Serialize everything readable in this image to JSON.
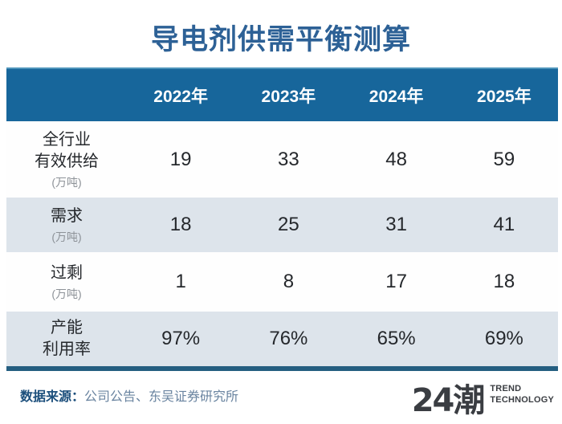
{
  "title": "导电剂供需平衡测算",
  "chart_data": {
    "type": "table",
    "title": "导电剂供需平衡测算",
    "categories": [
      "2022年",
      "2023年",
      "2024年",
      "2025年"
    ],
    "series": [
      {
        "name": "全行业有效供给(万吨)",
        "values": [
          19,
          33,
          48,
          59
        ]
      },
      {
        "name": "需求(万吨)",
        "values": [
          18,
          25,
          31,
          41
        ]
      },
      {
        "name": "过剩(万吨)",
        "values": [
          1,
          8,
          17,
          18
        ]
      },
      {
        "name": "产能利用率",
        "values": [
          "97%",
          "76%",
          "65%",
          "69%"
        ]
      }
    ]
  },
  "table": {
    "col_headers": [
      "2022年",
      "2023年",
      "2024年",
      "2025年"
    ],
    "rows": [
      {
        "label_line1": "全行业",
        "label_line2": "有效供给",
        "unit": "(万吨)",
        "values": [
          "19",
          "33",
          "48",
          "59"
        ]
      },
      {
        "label_line1": "需求",
        "unit": "(万吨)",
        "values": [
          "18",
          "25",
          "31",
          "41"
        ]
      },
      {
        "label_line1": "过剩",
        "unit": "(万吨)",
        "values": [
          "1",
          "8",
          "17",
          "18"
        ]
      },
      {
        "label_line1": "产能",
        "label_line2": "利用率",
        "values": [
          "97%",
          "76%",
          "65%",
          "69%"
        ]
      }
    ]
  },
  "footer": {
    "source_label": "数据来源：",
    "source_text": "公司公告、东吴证券研究所"
  },
  "logo": {
    "mark": "24潮",
    "line1": "TREND",
    "line2": "TECHNOLOGY"
  },
  "colors": {
    "title_text": "#2d6196",
    "header_bg": "#17669b",
    "header_top_edge": "#4f95bb",
    "light_row_bg": "#dde4eb",
    "bottom_bar": "#245e80",
    "value_text": "#25282c",
    "unit_text": "#8d9298",
    "source_label_text": "#1c4f7c",
    "source_text": "#6a84a0",
    "logo_text": "#3a3d42"
  }
}
